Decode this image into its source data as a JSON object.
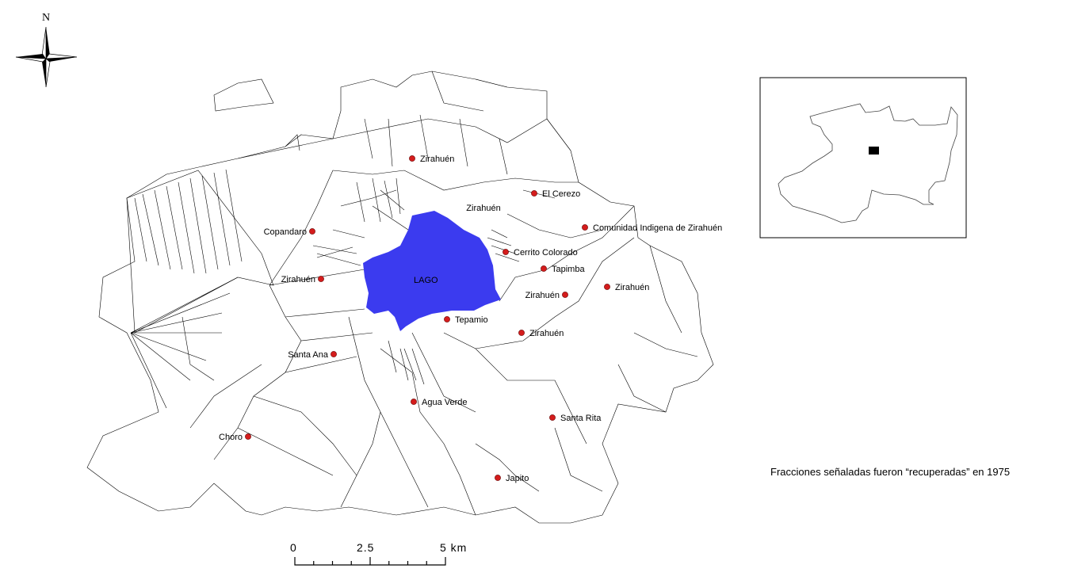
{
  "map": {
    "north_label": "N",
    "lake_label": "LAGO",
    "lake_color": "#3b3bef",
    "settlement_color": "#d41c1c",
    "settlements": [
      {
        "name": "Zirahuén"
      },
      {
        "name": "El Cerezo"
      },
      {
        "name": "Zirahuén"
      },
      {
        "name": "Comunidad Indigena de Zirahuén"
      },
      {
        "name": "Copandaro"
      },
      {
        "name": "Cerrito Colorado"
      },
      {
        "name": "Zirahuén"
      },
      {
        "name": "Tapimba"
      },
      {
        "name": "Zirahuén"
      },
      {
        "name": "Zirahuén"
      },
      {
        "name": "Tepamio"
      },
      {
        "name": "Zirahuén"
      },
      {
        "name": "Santa Ana"
      },
      {
        "name": "Agua Verde"
      },
      {
        "name": "Santa Rita"
      },
      {
        "name": "Choro"
      },
      {
        "name": "Japito"
      }
    ],
    "scale": {
      "labels": [
        "0",
        "2.5",
        "5 km"
      ]
    },
    "note": "Fracciones señaladas fueron “recuperadas” en 1975"
  }
}
